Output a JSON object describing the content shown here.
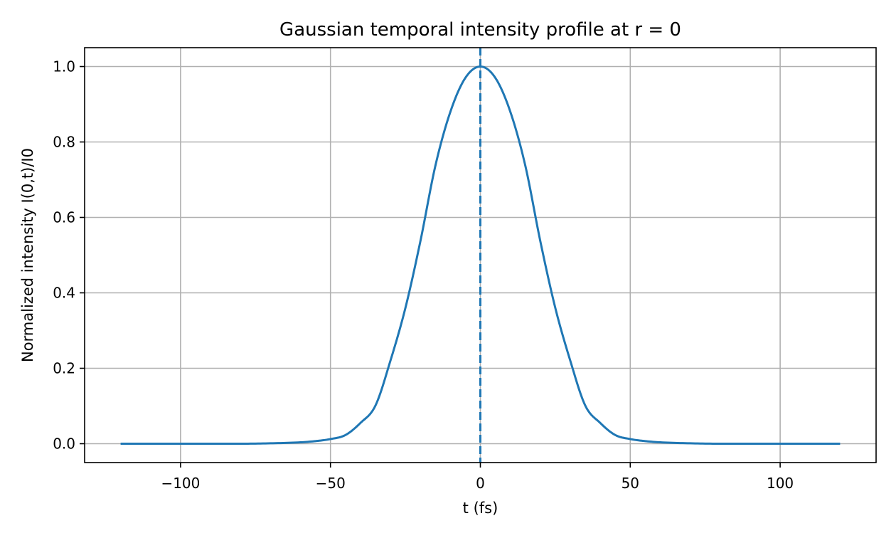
{
  "chart_data": {
    "type": "line",
    "title": "Gaussian temporal intensity profile at r = 0",
    "xlabel": "t (fs)",
    "ylabel": "Normalized intensity I(0,t)/I0",
    "xlim": [
      -132,
      132
    ],
    "ylim": [
      -0.05,
      1.05
    ],
    "x_ticks": [
      -100,
      -50,
      0,
      50,
      100
    ],
    "x_tick_labels": [
      "−100",
      "−50",
      "0",
      "50",
      "100"
    ],
    "y_ticks": [
      0.0,
      0.2,
      0.4,
      0.6,
      0.8,
      1.0
    ],
    "y_tick_labels": [
      "0.0",
      "0.2",
      "0.4",
      "0.6",
      "0.8",
      "1.0"
    ],
    "grid": true,
    "series": [
      {
        "style": "solid",
        "color": "#1f77b4",
        "x": [
          -120,
          -100,
          -80,
          -70,
          -60,
          -55,
          -50,
          -45,
          -40,
          -35,
          -30,
          -25,
          -20,
          -15,
          -10,
          -5,
          0,
          5,
          10,
          15,
          20,
          25,
          30,
          35,
          40,
          45,
          50,
          55,
          60,
          70,
          80,
          100,
          120
        ],
        "y": [
          0.0,
          0.0,
          0.0,
          0.0011,
          0.0037,
          0.0069,
          0.0123,
          0.023,
          0.055,
          0.101,
          0.22,
          0.36,
          0.537,
          0.737,
          0.88,
          0.97,
          1.0,
          0.97,
          0.88,
          0.737,
          0.537,
          0.36,
          0.22,
          0.101,
          0.055,
          0.023,
          0.0123,
          0.0069,
          0.0037,
          0.0011,
          0.0,
          0.0,
          0.0
        ]
      }
    ],
    "vertical_lines": [
      {
        "x": 0,
        "style": "dashed",
        "color": "#1f77b4"
      }
    ]
  }
}
